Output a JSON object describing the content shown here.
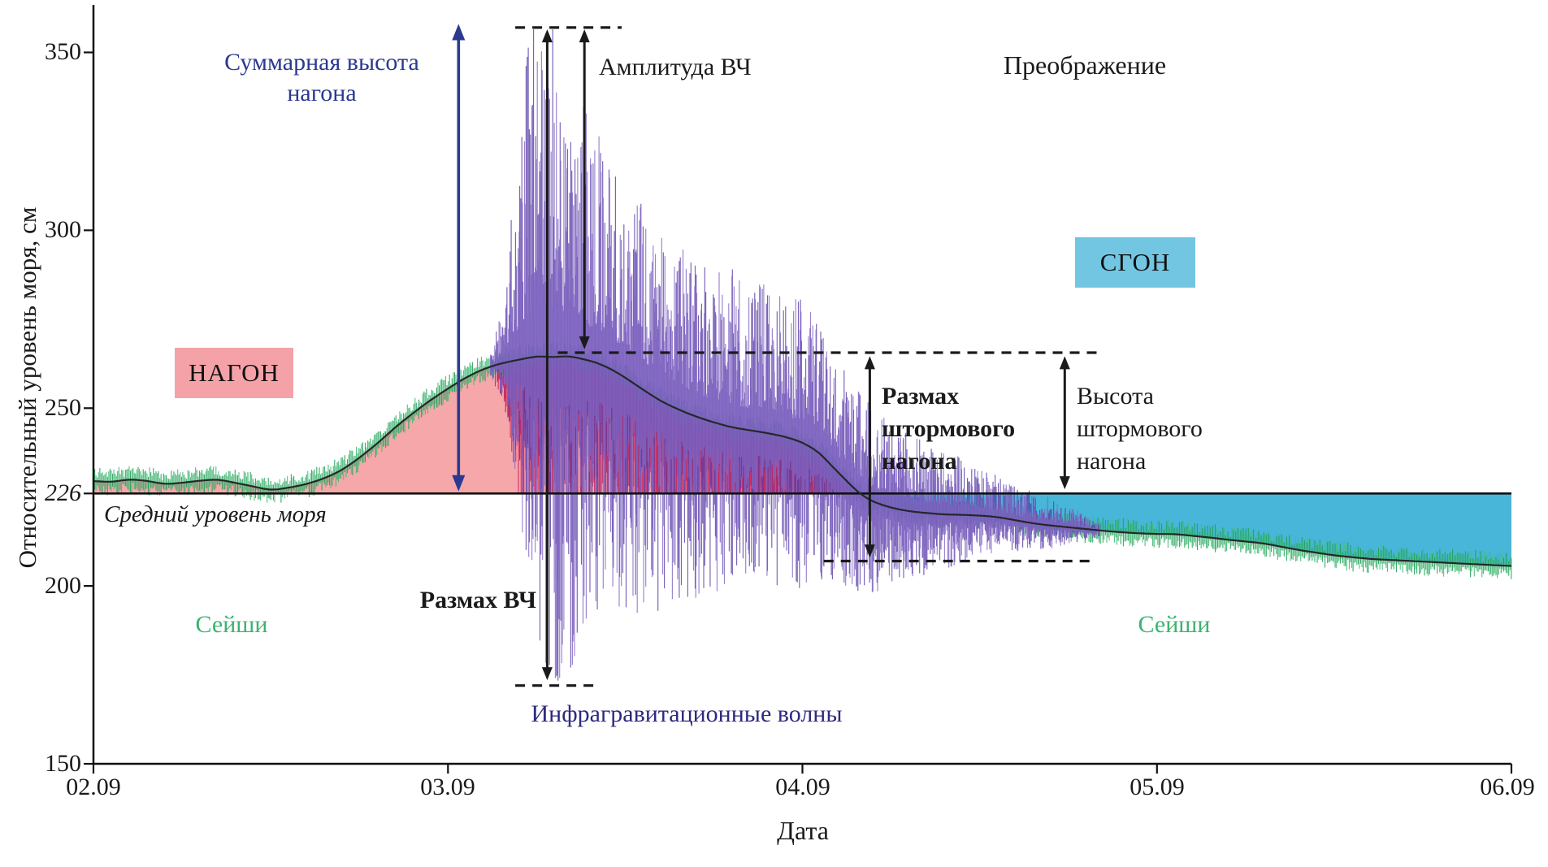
{
  "station": "Преображение",
  "axes": {
    "y": {
      "title": "Относительный уровень моря, см",
      "ticks": [
        {
          "label": "150",
          "value": 150
        },
        {
          "label": "200",
          "value": 200
        },
        {
          "label": "226",
          "value": 226,
          "italic": true
        },
        {
          "label": "250",
          "value": 250
        },
        {
          "label": "300",
          "value": 300
        },
        {
          "label": "350",
          "value": 350
        }
      ]
    },
    "x": {
      "title": "Дата",
      "ticks": [
        {
          "label": "02.09"
        },
        {
          "label": "03.09"
        },
        {
          "label": "04.09"
        },
        {
          "label": "05.09"
        },
        {
          "label": "06.09"
        }
      ]
    }
  },
  "labels": {
    "station": "Преображение",
    "total_surge_height": {
      "line1": "Суммарная высота",
      "line2": "нагона"
    },
    "hf_amplitude": "Амплитуда ВЧ",
    "hf_range": "Размах ВЧ",
    "surge_box": "НАГОН",
    "ebb_box": "СГОН",
    "mean_sea_level": "Средний уровень моря",
    "seiches_left": "Сейши",
    "seiches_right": "Сейши",
    "ig_waves": "Инфрагравитационные волны",
    "storm_surge_range": {
      "line1": "Размах",
      "line2": "штормового",
      "line3": "нагона"
    },
    "storm_surge_height": {
      "line1": "Высота",
      "line2": "штормового",
      "line3": "нагона"
    }
  },
  "colors": {
    "surge_fill": "#f5a7aa",
    "ebb_fill": "#47b6d8",
    "surge_box_bg": "#f4a2a8",
    "ebb_box_bg": "#72c6e2",
    "ig_purple": [
      "#5a3da6",
      "#8368c5"
    ],
    "seiche_green": [
      "#1fa257",
      "#43bd77"
    ],
    "surge_hf_red": [
      "#d02a60",
      "#c01d55"
    ],
    "curve": "#26262b",
    "mean_line": "#111111",
    "axis": "#111111",
    "dash": "#1b1b1b",
    "arrow_black": "#1a1a1a",
    "arrow_blue": "#2b3990",
    "label_navy": "#2b3990",
    "label_indigo": "#2e2a80",
    "label_green": "#3cb371"
  },
  "chart_data": {
    "type": "line",
    "title": "Преображение",
    "xlabel": "Дата",
    "ylabel": "Относительный уровень моря, см",
    "x_unit": "days since 02.09",
    "xlim_days": [
      0,
      4
    ],
    "x_tick_days": [
      0,
      1,
      2,
      3,
      4
    ],
    "x_tick_labels": [
      "02.09",
      "03.09",
      "04.09",
      "05.09",
      "06.09"
    ],
    "ylim_cm": [
      150,
      362
    ],
    "y_tick_values": [
      150,
      200,
      226,
      250,
      300,
      350
    ],
    "grid": false,
    "reference_levels_cm": {
      "mean_sea_level": 226,
      "storm_surge_peak": 265,
      "post_surge_min": 207,
      "hf_oscillation_max": 357,
      "hf_oscillation_min": 172
    },
    "derived_heights_cm": {
      "total_surge_height": 131,
      "hf_range": 185,
      "hf_amplitude": 92,
      "storm_surge_range": 58,
      "storm_surge_height": 39
    },
    "series": [
      {
        "name": "storm_surge_level_smoothed",
        "style": "dark_smooth_line",
        "points_day_cm": [
          [
            0,
            229.5
          ],
          [
            0.05,
            229.2
          ],
          [
            0.1,
            230
          ],
          [
            0.15,
            229.6
          ],
          [
            0.2,
            228.6
          ],
          [
            0.25,
            229
          ],
          [
            0.3,
            229.6
          ],
          [
            0.35,
            230
          ],
          [
            0.4,
            229
          ],
          [
            0.45,
            228
          ],
          [
            0.5,
            226.9
          ],
          [
            0.55,
            227.6
          ],
          [
            0.6,
            228.6
          ],
          [
            0.65,
            230.2
          ],
          [
            0.7,
            232.5
          ],
          [
            0.75,
            236
          ],
          [
            0.8,
            240
          ],
          [
            0.85,
            244.5
          ],
          [
            0.9,
            248.5
          ],
          [
            0.95,
            252.2
          ],
          [
            1,
            255.5
          ],
          [
            1.05,
            258.6
          ],
          [
            1.1,
            261
          ],
          [
            1.15,
            262.6
          ],
          [
            1.2,
            263.6
          ],
          [
            1.25,
            264.6
          ],
          [
            1.3,
            264.3
          ],
          [
            1.34,
            264.7
          ],
          [
            1.38,
            263.8
          ],
          [
            1.42,
            262.8
          ],
          [
            1.46,
            261
          ],
          [
            1.5,
            258.6
          ],
          [
            1.55,
            255.2
          ],
          [
            1.6,
            252
          ],
          [
            1.65,
            249.6
          ],
          [
            1.7,
            247.6
          ],
          [
            1.75,
            246
          ],
          [
            1.8,
            244.6
          ],
          [
            1.85,
            243.8
          ],
          [
            1.9,
            243
          ],
          [
            1.95,
            242
          ],
          [
            2,
            240.4
          ],
          [
            2.05,
            237.4
          ],
          [
            2.08,
            234
          ],
          [
            2.12,
            230
          ],
          [
            2.16,
            226
          ],
          [
            2.2,
            223.6
          ],
          [
            2.25,
            222
          ],
          [
            2.3,
            221
          ],
          [
            2.35,
            220.5
          ],
          [
            2.4,
            220.1
          ],
          [
            2.45,
            220
          ],
          [
            2.5,
            219.8
          ],
          [
            2.55,
            219.4
          ],
          [
            2.6,
            218.5
          ],
          [
            2.65,
            217.6
          ],
          [
            2.7,
            217
          ],
          [
            2.75,
            216.5
          ],
          [
            2.8,
            216
          ],
          [
            2.85,
            215.5
          ],
          [
            2.9,
            215.1
          ],
          [
            2.95,
            214.8
          ],
          [
            3,
            214.6
          ],
          [
            3.05,
            214.6
          ],
          [
            3.1,
            214.1
          ],
          [
            3.15,
            213.6
          ],
          [
            3.2,
            213
          ],
          [
            3.3,
            212
          ],
          [
            3.4,
            210.1
          ],
          [
            3.5,
            208.6
          ],
          [
            3.6,
            207.6
          ],
          [
            3.7,
            207.1
          ],
          [
            3.8,
            206.6
          ],
          [
            3.9,
            206.1
          ],
          [
            4,
            205.6
          ]
        ]
      },
      {
        "name": "infragravity_waves",
        "style": "purple_hf_band",
        "envelope_day_up_down": [
          [
            1.12,
            3,
            3
          ],
          [
            1.16,
            16,
            12
          ],
          [
            1.2,
            58,
            42
          ],
          [
            1.24,
            88,
            72
          ],
          [
            1.28,
            85,
            88
          ],
          [
            1.32,
            80,
            92
          ],
          [
            1.36,
            72,
            85
          ],
          [
            1.4,
            64,
            72
          ],
          [
            1.45,
            58,
            68
          ],
          [
            1.5,
            55,
            66
          ],
          [
            1.55,
            52,
            64
          ],
          [
            1.6,
            50,
            60
          ],
          [
            1.65,
            47,
            55
          ],
          [
            1.7,
            44,
            52
          ],
          [
            1.75,
            42,
            48
          ],
          [
            1.8,
            45,
            46
          ],
          [
            1.85,
            40,
            42
          ],
          [
            1.9,
            43,
            46
          ],
          [
            1.95,
            38,
            42
          ],
          [
            2,
            41,
            44
          ],
          [
            2.05,
            35,
            37
          ],
          [
            2.1,
            32,
            31
          ],
          [
            2.15,
            30,
            30
          ],
          [
            2.2,
            26,
            26
          ],
          [
            2.25,
            24,
            22
          ],
          [
            2.3,
            22,
            20
          ],
          [
            2.35,
            20,
            18
          ],
          [
            2.4,
            18,
            16
          ],
          [
            2.45,
            16,
            14
          ],
          [
            2.5,
            14,
            12
          ],
          [
            2.55,
            12,
            10
          ],
          [
            2.6,
            10,
            9
          ],
          [
            2.65,
            9,
            8
          ],
          [
            2.7,
            8,
            7
          ],
          [
            2.75,
            6,
            5
          ],
          [
            2.8,
            4,
            3
          ],
          [
            2.84,
            2,
            2
          ]
        ]
      },
      {
        "name": "seiches",
        "style": "green_noise_band",
        "amplitude_cm": 3.5,
        "extent_days": [
          0,
          4
        ]
      }
    ],
    "regions": [
      {
        "name": "НАГОН",
        "meaning": "surge above mean level",
        "from_day": 0,
        "to_day": 2.16,
        "between": "curve_and_mean_level"
      },
      {
        "name": "СГОН",
        "meaning": "set-down below mean level",
        "from_day": 2.16,
        "to_day": 4,
        "between": "mean_level_and_curve"
      }
    ],
    "annotations": {
      "arrows": [
        {
          "id": "total-surge-arrow",
          "day": 1.03,
          "from": 358,
          "to": 226.6,
          "variant": "blue"
        },
        {
          "id": "hf-range-arrow",
          "day": 1.28,
          "from": 356.5,
          "to": 173.5,
          "variant": "black"
        },
        {
          "id": "hf-amplitude-arrow",
          "day": 1.385,
          "from": 356.5,
          "to": 266.5,
          "variant": "black"
        },
        {
          "id": "storm-range-arrow",
          "day": 2.19,
          "from": 264.6,
          "to": 208,
          "variant": "black"
        },
        {
          "id": "storm-height-arrow",
          "day": 2.74,
          "from": 264.6,
          "to": 227.2,
          "variant": "black"
        }
      ],
      "dashed_lines": [
        {
          "id": "hf-top-dash",
          "cm": 357,
          "from_day": 1.19,
          "to_day": 1.49
        },
        {
          "id": "hf-bottom-dash",
          "cm": 172,
          "from_day": 1.19,
          "to_day": 1.43
        },
        {
          "id": "peak-level-dash",
          "cm": 265.6,
          "from_day": 1.31,
          "to_day": 2.83
        },
        {
          "id": "min-level-dash",
          "cm": 207,
          "from_day": 2.06,
          "to_day": 2.83
        }
      ]
    }
  }
}
